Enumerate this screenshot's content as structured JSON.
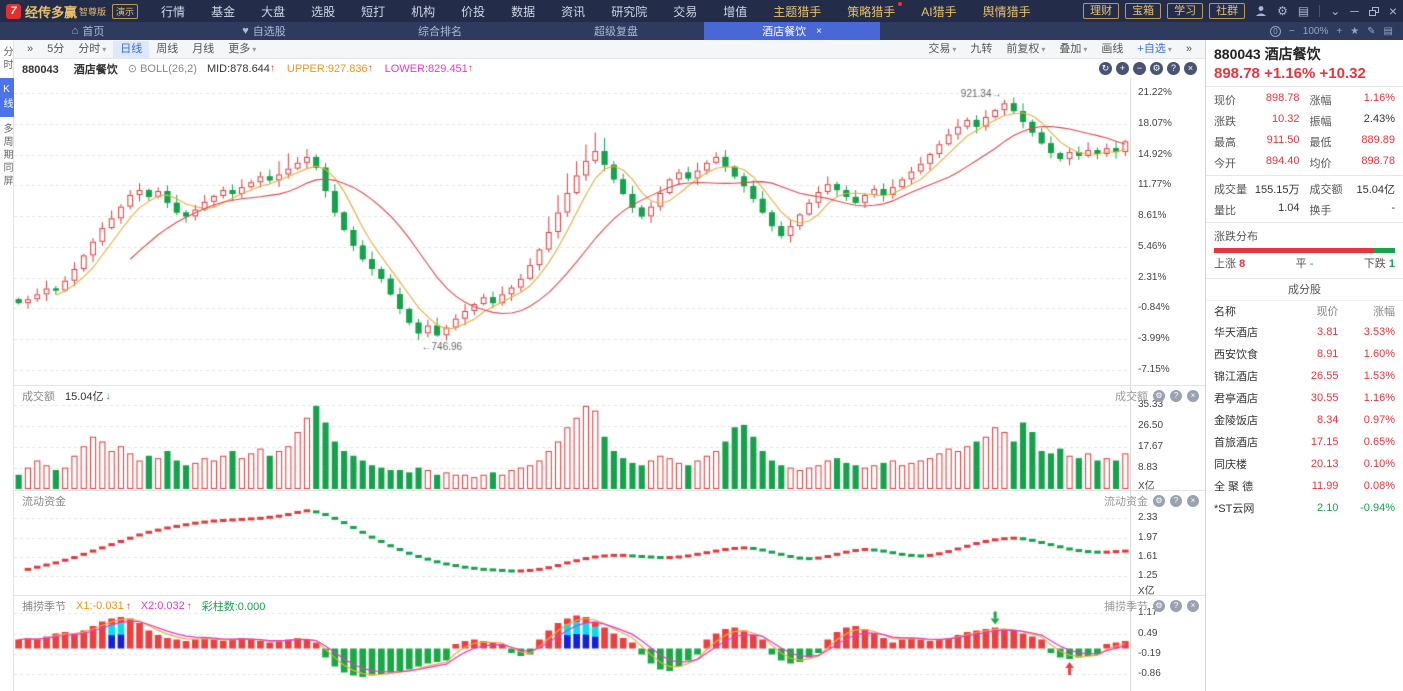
{
  "app": {
    "brand": "经传多赢",
    "edition": "智尊版",
    "badge": "演示",
    "menu": [
      "行情",
      "基金",
      "大盘",
      "选股",
      "短打",
      "机构",
      "价投",
      "数据",
      "资讯",
      "研究院",
      "交易",
      "增值",
      "主题猎手",
      "策略猎手",
      "AI猎手",
      "舆情猎手"
    ],
    "menu_gold": [
      "主题猎手",
      "策略猎手",
      "AI猎手",
      "舆情猎手"
    ],
    "menu_red_dot": "策略猎手",
    "quick_buttons": [
      "理财",
      "宝箱",
      "学习",
      "社群"
    ]
  },
  "icons": {
    "home": "⌂",
    "heart": "♥",
    "gear": "⚙",
    "chevron_down": "⌄",
    "minimize": "─",
    "close": "×",
    "star": "★",
    "pencil": "✎",
    "layout": "▤",
    "minus": "−",
    "plus": "+",
    "zero": "0",
    "refresh": "↻",
    "question": "?",
    "double_chevron": "»",
    "caret": "▾",
    "circle_dot": "⊙"
  },
  "tabs": {
    "items": [
      {
        "label": "首页",
        "icon": "home",
        "active": false,
        "closable": false
      },
      {
        "label": "自选股",
        "icon": "heart",
        "active": false,
        "closable": false
      },
      {
        "label": "综合排名",
        "icon": "",
        "active": false,
        "closable": false
      },
      {
        "label": "超级复盘",
        "icon": "",
        "active": false,
        "closable": false
      },
      {
        "label": "酒店餐饮",
        "icon": "",
        "active": true,
        "closable": true
      }
    ],
    "zoom_level": "100%"
  },
  "ktoolbar": {
    "left": [
      "5分",
      "分时",
      "日线",
      "周线",
      "月线",
      "更多"
    ],
    "left_carets": [
      "分时",
      "更多"
    ],
    "active": "日线",
    "right": [
      "交易",
      "九转",
      "前复权",
      "叠加",
      "画线",
      "+自选"
    ],
    "right_carets": [
      "交易",
      "前复权",
      "叠加",
      "+自选"
    ]
  },
  "indicator": {
    "code": "880043",
    "name": "酒店餐饮",
    "study": "BOLL(26,2)",
    "mid": "MID:878.644",
    "upper": "UPPER:927.836",
    "lower": "LOWER:829.451"
  },
  "left_rail": {
    "items": [
      "分时",
      "K线",
      "多周期同屏"
    ],
    "active": "K线"
  },
  "main_axis": [
    "21.22%",
    "18.07%",
    "14.92%",
    "11.77%",
    "8.61%",
    "5.46%",
    "2.31%",
    "-0.84%",
    "-3.99%",
    "-7.15%"
  ],
  "annotations": {
    "high": "921.34→",
    "low": "←746.96"
  },
  "panels": {
    "volume": {
      "title": "成交额",
      "value": "15.04亿",
      "axis": [
        "35.33",
        "26.50",
        "17.67",
        "8.83"
      ],
      "unit": "X亿"
    },
    "fund": {
      "title": "流动资金",
      "axis": [
        "2.33",
        "1.97",
        "1.61",
        "1.25"
      ],
      "unit": "X亿"
    },
    "osc": {
      "title": "捕捞季节",
      "x1": "X1:-0.031",
      "x2": "X2:0.032",
      "bars": "彩柱数:0.000",
      "axis": [
        "1.17",
        "0.49",
        "-0.19",
        "-0.86"
      ]
    }
  },
  "quote": {
    "code": "880043",
    "name": "酒店餐饮",
    "price": "898.78",
    "change_pct": "+1.16%",
    "change": "+10.32",
    "rows": [
      [
        {
          "l": "现价",
          "v": "898.78",
          "c": "red"
        },
        {
          "l": "涨幅",
          "v": "1.16%",
          "c": "red"
        }
      ],
      [
        {
          "l": "涨跌",
          "v": "10.32",
          "c": "red"
        },
        {
          "l": "振幅",
          "v": "2.43%",
          "c": "dark"
        }
      ],
      [
        {
          "l": "最高",
          "v": "911.50",
          "c": "red"
        },
        {
          "l": "最低",
          "v": "889.89",
          "c": "red"
        }
      ],
      [
        {
          "l": "今开",
          "v": "894.40",
          "c": "red"
        },
        {
          "l": "均价",
          "v": "898.78",
          "c": "red"
        }
      ]
    ],
    "rows2": [
      [
        {
          "l": "成交量",
          "v": "155.15万",
          "c": "dark"
        },
        {
          "l": "成交额",
          "v": "15.04亿",
          "c": "dark"
        }
      ],
      [
        {
          "l": "量比",
          "v": "1.04",
          "c": "dark"
        },
        {
          "l": "换手",
          "v": "-",
          "c": "dark"
        }
      ]
    ],
    "distribution": {
      "title": "涨跌分布",
      "up_label": "上涨",
      "up": "8",
      "flat_label": "平",
      "flat": "-",
      "down_label": "下跌",
      "down": "1",
      "up_ratio": 0.88
    }
  },
  "members": {
    "title": "成分股",
    "headers": [
      "名称",
      "现价",
      "涨幅"
    ],
    "rows": [
      [
        "华天酒店",
        "3.81",
        "3.53%",
        "red"
      ],
      [
        "西安饮食",
        "8.91",
        "1.60%",
        "red"
      ],
      [
        "锦江酒店",
        "26.55",
        "1.53%",
        "red"
      ],
      [
        "君亭酒店",
        "30.55",
        "1.16%",
        "red"
      ],
      [
        "金陵饭店",
        "8.34",
        "0.97%",
        "red"
      ],
      [
        "首旅酒店",
        "17.15",
        "0.65%",
        "red"
      ],
      [
        "同庆楼",
        "20.13",
        "0.10%",
        "red"
      ],
      [
        "全 聚 德",
        "11.99",
        "0.08%",
        "red"
      ],
      [
        "*ST云网",
        "2.10",
        "-0.94%",
        "green"
      ]
    ]
  },
  "colors": {
    "up": "#e03a3a",
    "down": "#14a24a",
    "ma_fast": "#f0aa3a",
    "ma_slow": "#e04a4a",
    "osc_red": "#ee3f3f",
    "osc_green": "#18a944",
    "osc_cyan": "#00e0f0",
    "osc_blue": "#1420e0",
    "x1_line": "#f0aa3a",
    "x2_line": "#e838c8",
    "grid": "#e5e5e5",
    "anno": "#666"
  },
  "chart_data": {
    "type": "candlestick+volume+line+oscillator",
    "x_count": 120,
    "kline": {
      "ylim_pct": [
        -8.7,
        22.8
      ],
      "high_label": "921.34",
      "high_index": 106,
      "low_label": "746.96",
      "low_index": 43,
      "ma_periods": [
        5,
        13
      ],
      "tall_wick_indices": [
        28,
        29,
        57,
        58,
        59,
        60,
        61,
        62,
        63
      ],
      "closes_pct": [
        -0.3,
        0.1,
        0.6,
        1.2,
        1.0,
        2.0,
        3.2,
        4.6,
        6.0,
        7.4,
        8.4,
        9.6,
        10.8,
        11.3,
        10.6,
        11.2,
        10.0,
        9.0,
        8.6,
        9.3,
        10.1,
        10.7,
        11.3,
        10.9,
        11.6,
        12.1,
        12.7,
        12.3,
        12.9,
        13.5,
        14.1,
        14.7,
        13.6,
        11.2,
        9.0,
        7.2,
        5.6,
        4.2,
        3.2,
        2.2,
        0.6,
        -0.9,
        -2.3,
        -3.4,
        -2.6,
        -3.6,
        -2.8,
        -1.9,
        -1.1,
        -0.4,
        0.3,
        -0.3,
        0.6,
        1.3,
        2.2,
        3.6,
        5.2,
        7.0,
        9.0,
        11.0,
        12.8,
        14.3,
        15.3,
        13.9,
        12.4,
        10.9,
        9.5,
        8.6,
        9.6,
        11.0,
        12.4,
        13.1,
        12.5,
        13.3,
        14.1,
        14.7,
        13.7,
        12.7,
        11.7,
        10.4,
        9.0,
        7.6,
        6.6,
        7.6,
        8.8,
        10.0,
        11.1,
        11.9,
        11.3,
        10.6,
        10.0,
        10.8,
        11.4,
        10.8,
        11.6,
        12.4,
        13.2,
        14.0,
        15.0,
        16.0,
        17.0,
        17.8,
        18.5,
        17.8,
        18.8,
        19.5,
        20.2,
        19.4,
        18.3,
        17.2,
        16.1,
        15.1,
        14.5,
        15.2,
        14.8,
        15.4,
        15.0,
        15.6,
        15.2,
        16.3
      ]
    },
    "volume": {
      "ylim": [
        0,
        40
      ],
      "values": [
        6,
        9,
        12,
        10,
        8,
        9,
        14,
        18,
        22,
        20,
        16,
        18,
        15,
        12,
        14,
        13,
        16,
        12,
        10,
        11,
        13,
        12,
        14,
        16,
        13,
        15,
        17,
        14,
        16,
        18,
        24,
        30,
        35,
        28,
        20,
        16,
        14,
        12,
        10,
        9,
        8,
        8,
        7,
        9,
        8,
        6,
        7,
        6,
        6,
        5,
        6,
        7,
        6,
        8,
        9,
        10,
        12,
        16,
        20,
        26,
        30,
        35,
        33,
        22,
        16,
        13,
        11,
        10,
        12,
        14,
        13,
        11,
        10,
        12,
        14,
        16,
        20,
        26,
        27,
        22,
        16,
        12,
        10,
        9,
        8,
        9,
        10,
        12,
        13,
        11,
        10,
        9,
        10,
        11,
        12,
        10,
        11,
        12,
        13,
        15,
        17,
        16,
        18,
        20,
        22,
        26,
        24,
        20,
        28,
        24,
        16,
        15,
        17,
        14,
        13,
        15,
        12,
        13,
        12,
        15
      ]
    },
    "fund": {
      "ylim": [
        1.07,
        2.69
      ],
      "values": [
        1.35,
        1.38,
        1.42,
        1.46,
        1.5,
        1.55,
        1.6,
        1.66,
        1.72,
        1.78,
        1.84,
        1.9,
        1.96,
        2.02,
        2.07,
        2.11,
        2.15,
        2.18,
        2.21,
        2.24,
        2.26,
        2.28,
        2.29,
        2.3,
        2.31,
        2.32,
        2.33,
        2.35,
        2.37,
        2.4,
        2.44,
        2.47,
        2.45,
        2.4,
        2.33,
        2.25,
        2.16,
        2.07,
        1.98,
        1.9,
        1.82,
        1.75,
        1.68,
        1.62,
        1.57,
        1.52,
        1.48,
        1.45,
        1.42,
        1.4,
        1.38,
        1.37,
        1.36,
        1.35,
        1.35,
        1.36,
        1.38,
        1.41,
        1.45,
        1.5,
        1.54,
        1.58,
        1.61,
        1.63,
        1.64,
        1.64,
        1.63,
        1.62,
        1.61,
        1.6,
        1.6,
        1.61,
        1.63,
        1.66,
        1.69,
        1.72,
        1.75,
        1.77,
        1.78,
        1.77,
        1.74,
        1.7,
        1.66,
        1.62,
        1.59,
        1.58,
        1.59,
        1.62,
        1.66,
        1.7,
        1.73,
        1.75,
        1.74,
        1.72,
        1.69,
        1.66,
        1.64,
        1.63,
        1.64,
        1.67,
        1.71,
        1.76,
        1.81,
        1.86,
        1.9,
        1.93,
        1.95,
        1.96,
        1.95,
        1.92,
        1.88,
        1.84,
        1.8,
        1.76,
        1.73,
        1.71,
        1.7,
        1.7,
        1.71,
        1.72
      ]
    },
    "osc": {
      "ylim": [
        -1.25,
        1.55
      ],
      "highlight_indices": [
        10,
        11,
        59,
        60,
        61,
        62
      ],
      "arrow_down_index": 105,
      "arrow_up_index": 113,
      "values": [
        0.3,
        0.35,
        0.3,
        0.4,
        0.5,
        0.55,
        0.5,
        0.6,
        0.75,
        0.9,
        1.0,
        1.05,
        1.0,
        0.85,
        0.6,
        0.45,
        0.35,
        0.3,
        0.25,
        0.3,
        0.35,
        0.3,
        0.25,
        0.3,
        0.35,
        0.3,
        0.25,
        0.2,
        0.25,
        0.3,
        0.35,
        0.3,
        0.2,
        -0.3,
        -0.6,
        -0.8,
        -0.9,
        -0.95,
        -0.9,
        -0.85,
        -0.8,
        -0.75,
        -0.7,
        -0.6,
        -0.5,
        -0.45,
        -0.4,
        0.15,
        0.25,
        0.3,
        0.25,
        0.2,
        0.15,
        -0.15,
        -0.25,
        -0.2,
        0.3,
        0.6,
        0.85,
        1.0,
        1.1,
        1.05,
        0.9,
        0.7,
        0.5,
        0.35,
        0.2,
        -0.2,
        -0.5,
        -0.7,
        -0.75,
        -0.6,
        -0.4,
        -0.2,
        0.3,
        0.5,
        0.65,
        0.7,
        0.6,
        0.45,
        0.3,
        -0.2,
        -0.4,
        -0.5,
        -0.45,
        -0.3,
        -0.15,
        0.3,
        0.55,
        0.7,
        0.75,
        0.65,
        0.5,
        0.35,
        0.2,
        0.3,
        0.35,
        0.3,
        0.25,
        0.3,
        0.35,
        0.45,
        0.55,
        0.6,
        0.65,
        0.7,
        0.65,
        0.6,
        0.5,
        0.4,
        0.3,
        -0.15,
        -0.3,
        -0.35,
        -0.3,
        -0.25,
        -0.2,
        0.15,
        0.2,
        0.25
      ]
    }
  }
}
